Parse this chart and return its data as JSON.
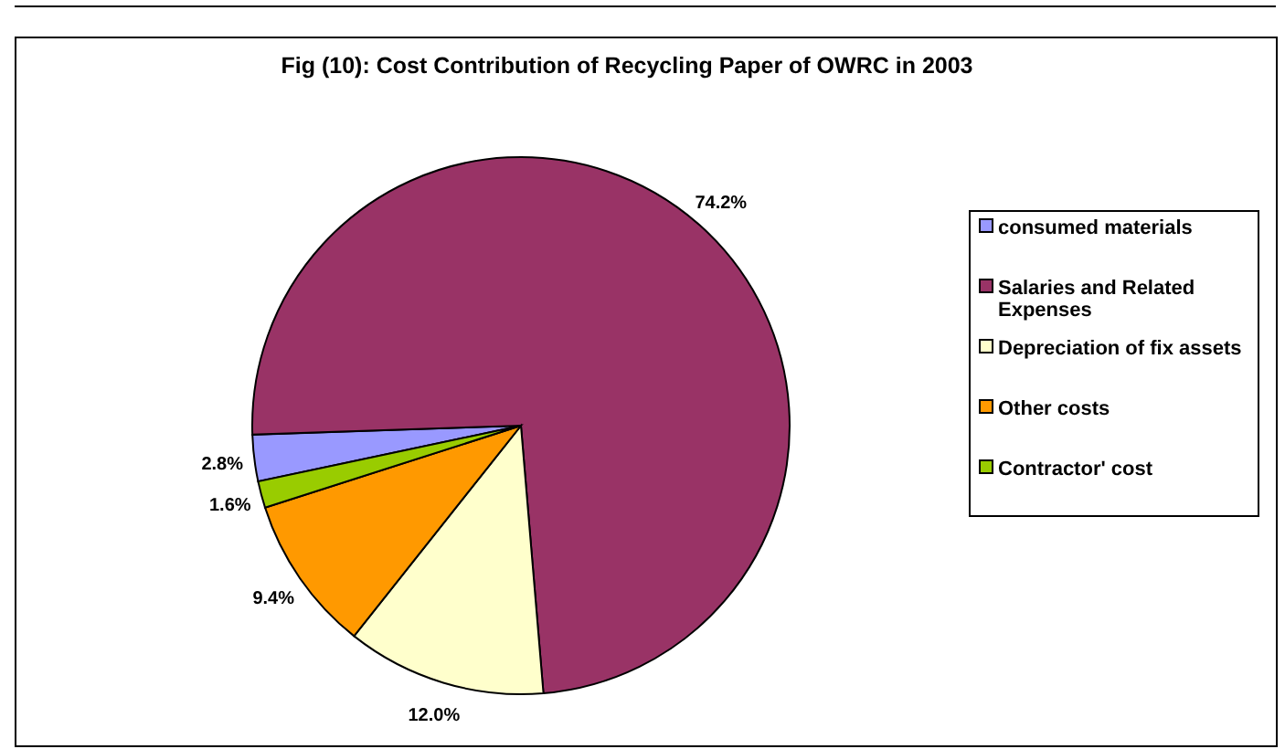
{
  "chart_data": {
    "type": "pie",
    "title": "Fig (10): Cost Contribution of Recycling Paper of OWRC in 2003",
    "categories": [
      "consumed materials",
      "Salaries and Related Expenses",
      "Depreciation of fix assets",
      "Other costs",
      "Contractor' cost"
    ],
    "values": [
      2.8,
      74.2,
      12.0,
      9.4,
      1.6
    ],
    "value_labels": [
      "2.8%",
      "74.2%",
      "12.0%",
      "9.4%",
      "1.6%"
    ],
    "colors": [
      "#9999ff",
      "#993366",
      "#ffffcc",
      "#ff9900",
      "#99cc00"
    ],
    "legend": "right"
  }
}
